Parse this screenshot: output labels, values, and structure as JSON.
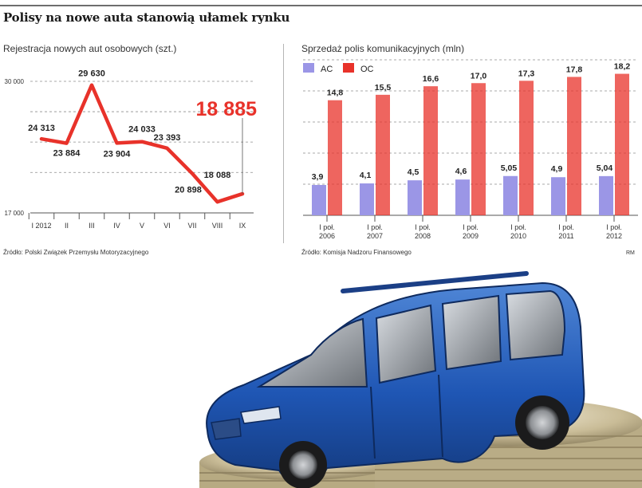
{
  "headline": "Polisy na nowe auta stanowią ułamek rynku",
  "chart_data": [
    {
      "type": "line",
      "title": "Rejestracja nowych aut osobowych (szt.)",
      "categories": [
        "I 2012",
        "II",
        "III",
        "IV",
        "V",
        "VI",
        "VII",
        "VIII",
        "IX"
      ],
      "series": [
        {
          "values": [
            24313,
            23884,
            29630,
            23904,
            24033,
            23393,
            20898,
            18088,
            18885
          ]
        }
      ],
      "data_labels": [
        "24 313",
        "23 884",
        "29 630",
        "23 904",
        "24 033",
        "23 393",
        "20 898",
        "18 088",
        "18 885"
      ],
      "y_ticks": [
        {
          "value": 17000,
          "label": "17 000"
        },
        {
          "value": 30000,
          "label": "30 000"
        }
      ],
      "ylim": [
        17000,
        30000
      ],
      "grid": "horizontal dashed",
      "line_color": "#e8322a",
      "highlight_color": "#e8322a",
      "source": "Źródło: Polski Związek Przemysłu Motoryzacyjnego"
    },
    {
      "type": "bar",
      "title": "Sprzedaż polis komunikacyjnych (mln)",
      "categories": [
        [
          "I poł.",
          "2006"
        ],
        [
          "I poł.",
          "2007"
        ],
        [
          "I poł.",
          "2008"
        ],
        [
          "I poł.",
          "2009"
        ],
        [
          "I poł.",
          "2010"
        ],
        [
          "I poł.",
          "2011"
        ],
        [
          "I poł.",
          "2012"
        ]
      ],
      "series": [
        {
          "name": "AC",
          "values": [
            3.9,
            4.1,
            4.5,
            4.6,
            5.05,
            4.9,
            5.04
          ],
          "labels": [
            "3,9",
            "4,1",
            "4,5",
            "4,6",
            "5,05",
            "4,9",
            "5,04"
          ],
          "color": "#9b96e6"
        },
        {
          "name": "OC",
          "values": [
            14.8,
            15.5,
            16.6,
            17.0,
            17.3,
            17.8,
            18.2
          ],
          "labels": [
            "14,8",
            "15,5",
            "16,6",
            "17,0",
            "17,3",
            "17,8",
            "18,2"
          ],
          "color": "#e8322a"
        }
      ],
      "ylim": [
        0,
        20
      ],
      "grid": "horizontal dashed",
      "legend": "top-left",
      "source": "Źródło: Komisja Nadzoru Finansowego",
      "credit": "RM"
    }
  ]
}
